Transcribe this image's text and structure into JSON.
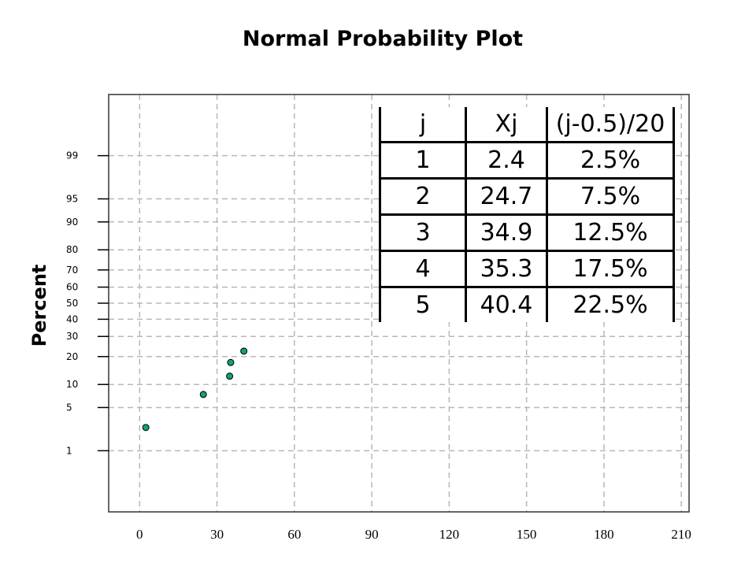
{
  "chart_data": {
    "type": "scatter",
    "title": "Normal Probability Plot",
    "ylabel": "Percent",
    "xlabel": "",
    "x_ticks": [
      0,
      30,
      60,
      90,
      120,
      150,
      180,
      210
    ],
    "xlim": [
      -12,
      213
    ],
    "y_ticks": [
      1,
      5,
      10,
      20,
      30,
      40,
      50,
      60,
      70,
      80,
      90,
      95,
      99
    ],
    "ylim": [
      0.05,
      99.95
    ],
    "y_scale": "normal-probability",
    "grid": true,
    "points": [
      {
        "x": 2.4,
        "y": 2.5
      },
      {
        "x": 24.7,
        "y": 7.5
      },
      {
        "x": 34.9,
        "y": 12.5
      },
      {
        "x": 35.3,
        "y": 17.5
      },
      {
        "x": 40.4,
        "y": 22.5
      }
    ],
    "table": {
      "headers": [
        "j",
        "Xj",
        "(j-0.5)/20"
      ],
      "rows": [
        [
          "1",
          "2.4",
          "2.5%"
        ],
        [
          "2",
          "24.7",
          "7.5%"
        ],
        [
          "3",
          "34.9",
          "12.5%"
        ],
        [
          "4",
          "35.3",
          "17.5%"
        ],
        [
          "5",
          "40.4",
          "22.5%"
        ]
      ]
    }
  }
}
